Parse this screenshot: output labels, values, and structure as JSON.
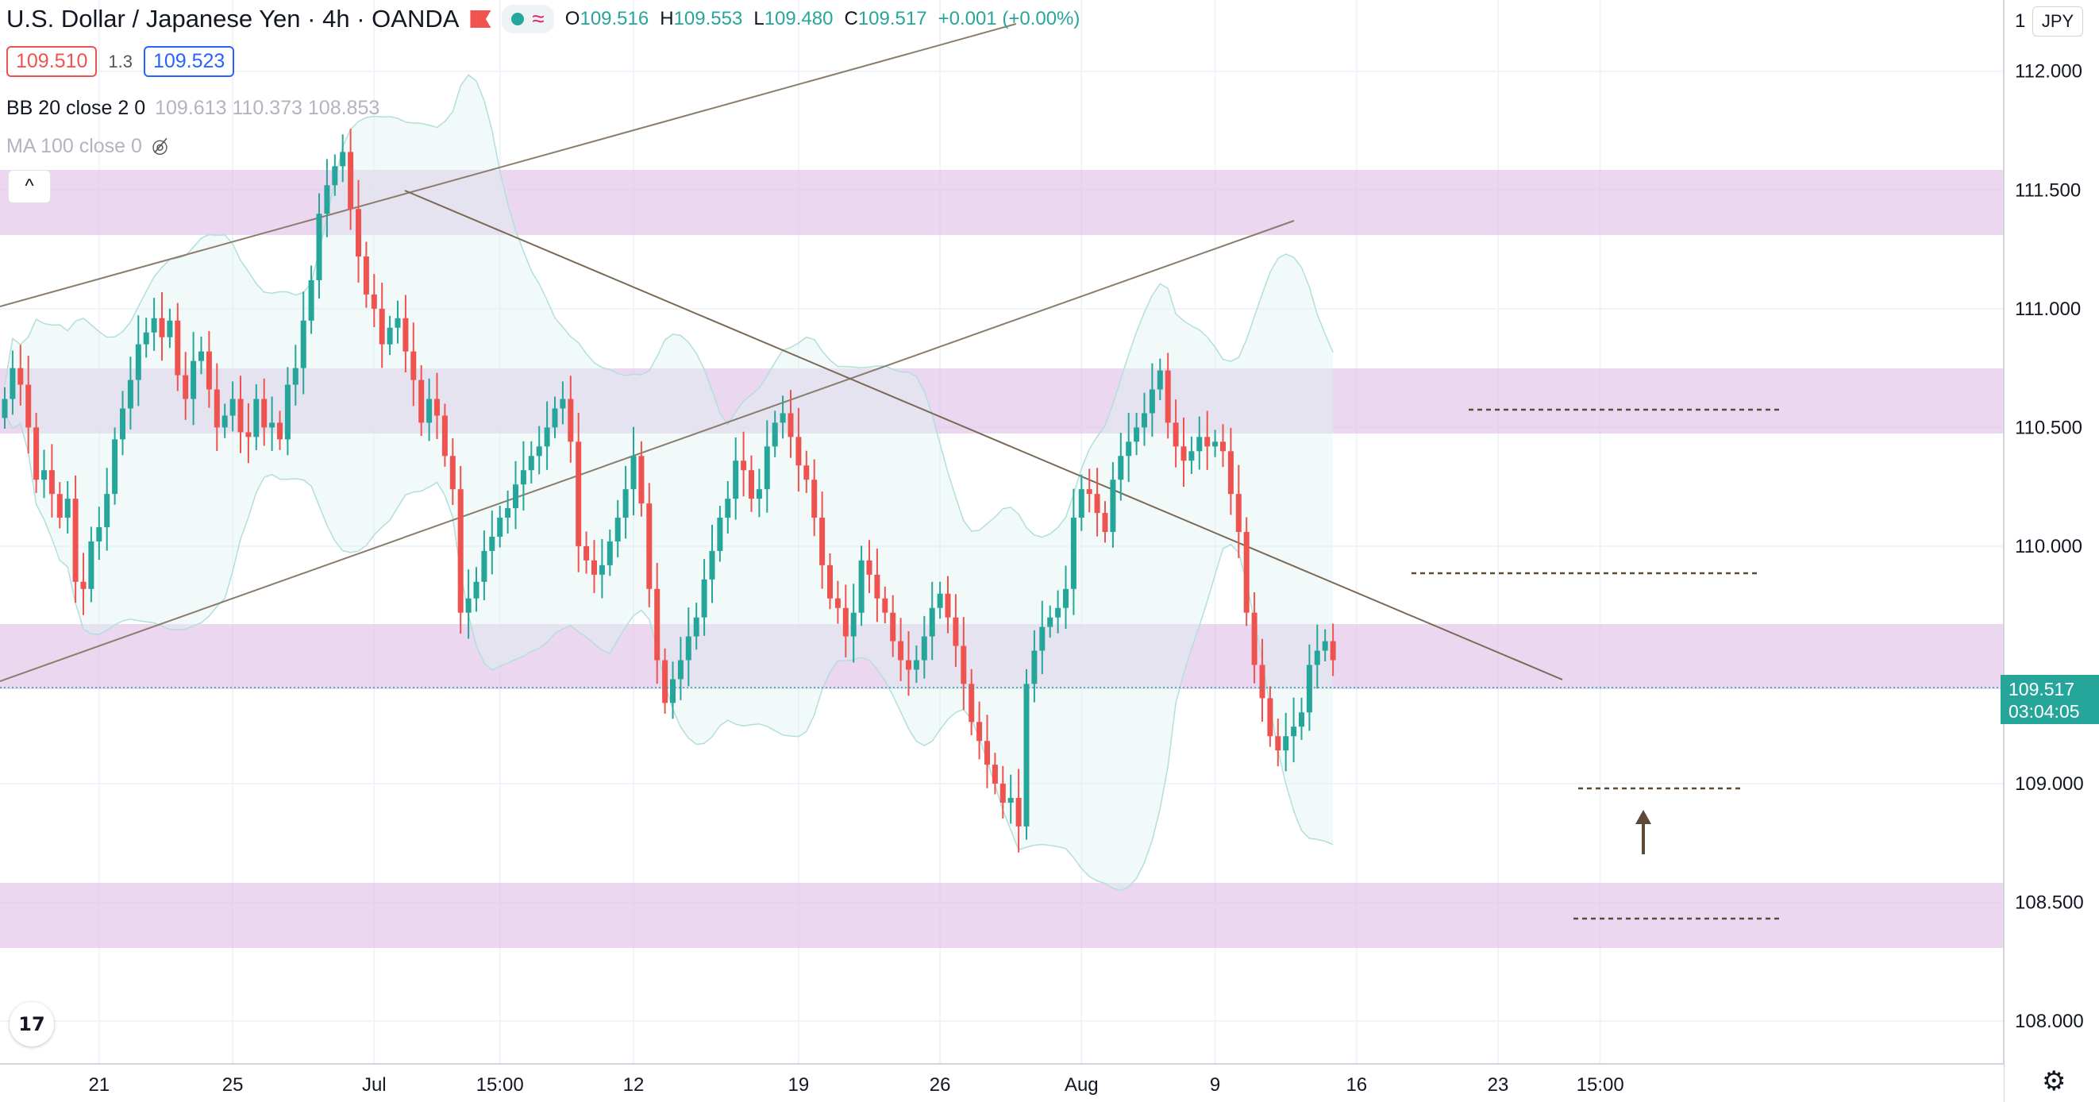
{
  "header": {
    "symbol": "U.S. Dollar / Japanese Yen",
    "sep1": "·",
    "interval": "4h",
    "sep2": "·",
    "exchange": "OANDA",
    "wave_icon": "≈",
    "open_label": "O",
    "open": "109.516",
    "high_label": "H",
    "high": "109.553",
    "low_label": "L",
    "low": "109.480",
    "close_label": "C",
    "close": "109.517",
    "change": "+0.001 (+0.00%)"
  },
  "trade": {
    "sell": "109.510",
    "spread": "1.3",
    "buy": "109.523"
  },
  "indicators": {
    "bb_label": "BB 20 close 2 0",
    "bb_values": "109.613  110.373  108.853",
    "ma_label": "MA 100 close 0"
  },
  "currency": "JPY",
  "collapse_icon": "^",
  "logo_text": "17",
  "settings_icon": "⚙",
  "colors": {
    "up": "#26a69a",
    "down": "#ef5350",
    "zone": "#e1bee7",
    "band": "#e0f2f1",
    "line": "#7a6a55"
  },
  "chart_data": {
    "type": "candlestick",
    "title": "U.S. Dollar / Japanese Yen · 4h · OANDA",
    "ylim": [
      107.82,
      112.3
    ],
    "y_ticks": [
      "112.000",
      "111.500",
      "111.000",
      "110.500",
      "110.000",
      "109.000",
      "108.500",
      "108.000"
    ],
    "y_tick_values": [
      112.0,
      111.5,
      111.0,
      110.5,
      110.0,
      109.0,
      108.5,
      108.0
    ],
    "x_ticks": [
      "21",
      "25",
      "Jul",
      "15:00",
      "12",
      "19",
      "26",
      "Aug",
      "9",
      "16",
      "23",
      "15:00"
    ],
    "x_tick_index": [
      12,
      29,
      47,
      63,
      80,
      101,
      119,
      137,
      154,
      172,
      190,
      203
    ],
    "last_price": "109.517",
    "countdown": "03:04:05",
    "last_value": 109.517,
    "candles_close": [
      110.62,
      110.75,
      110.68,
      110.5,
      110.28,
      110.32,
      110.22,
      110.12,
      110.2,
      109.85,
      109.82,
      110.02,
      110.08,
      110.22,
      110.45,
      110.58,
      110.7,
      110.85,
      110.9,
      110.96,
      110.88,
      110.95,
      110.72,
      110.62,
      110.78,
      110.82,
      110.66,
      110.5,
      110.55,
      110.62,
      110.48,
      110.46,
      110.62,
      110.5,
      110.52,
      110.45,
      110.68,
      110.75,
      110.95,
      111.12,
      111.4,
      111.52,
      111.6,
      111.66,
      111.42,
      111.22,
      111.06,
      111.0,
      110.85,
      110.92,
      110.96,
      110.82,
      110.7,
      110.52,
      110.62,
      110.55,
      110.38,
      110.24,
      109.72,
      109.78,
      109.85,
      109.98,
      110.04,
      110.12,
      110.16,
      110.26,
      110.32,
      110.38,
      110.42,
      110.5,
      110.58,
      110.62,
      110.44,
      110.0,
      109.94,
      109.88,
      109.92,
      110.02,
      110.12,
      110.24,
      110.38,
      110.18,
      109.82,
      109.52,
      109.34,
      109.44,
      109.52,
      109.62,
      109.7,
      109.86,
      109.98,
      110.12,
      110.2,
      110.36,
      110.32,
      110.2,
      110.24,
      110.42,
      110.52,
      110.56,
      110.46,
      110.34,
      110.28,
      110.12,
      109.92,
      109.78,
      109.74,
      109.62,
      109.72,
      109.94,
      109.88,
      109.78,
      109.72,
      109.6,
      109.52,
      109.48,
      109.52,
      109.62,
      109.74,
      109.8,
      109.7,
      109.58,
      109.42,
      109.26,
      109.18,
      109.08,
      109.0,
      108.92,
      108.94,
      108.82,
      109.42,
      109.56,
      109.66,
      109.7,
      109.74,
      109.82,
      110.12,
      110.24,
      110.22,
      110.14,
      110.06,
      110.28,
      110.38,
      110.44,
      110.5,
      110.56,
      110.66,
      110.74,
      110.52,
      110.42,
      110.36,
      110.4,
      110.46,
      110.42,
      110.44,
      110.4,
      110.22,
      110.06,
      109.72,
      109.5,
      109.36,
      109.2,
      109.14,
      109.2,
      109.24,
      109.3,
      109.5,
      109.56,
      109.6,
      109.52
    ]
  }
}
